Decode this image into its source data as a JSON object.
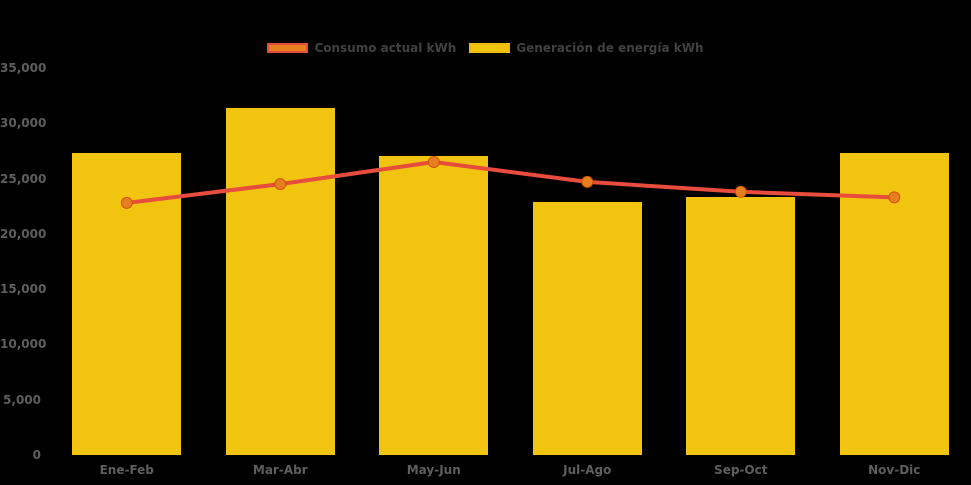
{
  "chart_data": {
    "type": "bar",
    "title": "",
    "xlabel": "",
    "ylabel": "",
    "categories": [
      "Ene-Feb",
      "Mar-Abr",
      "May-Jun",
      "Jul-Ago",
      "Sep-Oct",
      "Nov-Dic"
    ],
    "series": [
      {
        "name": "Consumo actual kWh",
        "type": "line",
        "values": [
          22800,
          24500,
          26500,
          24700,
          23800,
          23300
        ],
        "line_color": "#E74C3C",
        "marker_color": "#E67E22",
        "marker_border_color": "#D35400"
      },
      {
        "name": "Generación de energía kWh",
        "type": "bar",
        "values": [
          27300,
          31400,
          27000,
          22900,
          23300,
          27300
        ],
        "color": "#F1C40F"
      }
    ],
    "ylim": [
      0,
      35000
    ],
    "ytick_values": [
      35000,
      30000,
      25000,
      20000,
      15000,
      10000,
      5000,
      0
    ],
    "ytick_labels": [
      "35,000",
      "30,000",
      "25,000",
      "20,000",
      "15,000",
      "10,000",
      "5,000",
      "0"
    ],
    "grid": false,
    "legend_position": "top-center",
    "background_color": "#000000",
    "axis_label_color": "#5E5E5E",
    "legend_text_color": "#414141"
  }
}
